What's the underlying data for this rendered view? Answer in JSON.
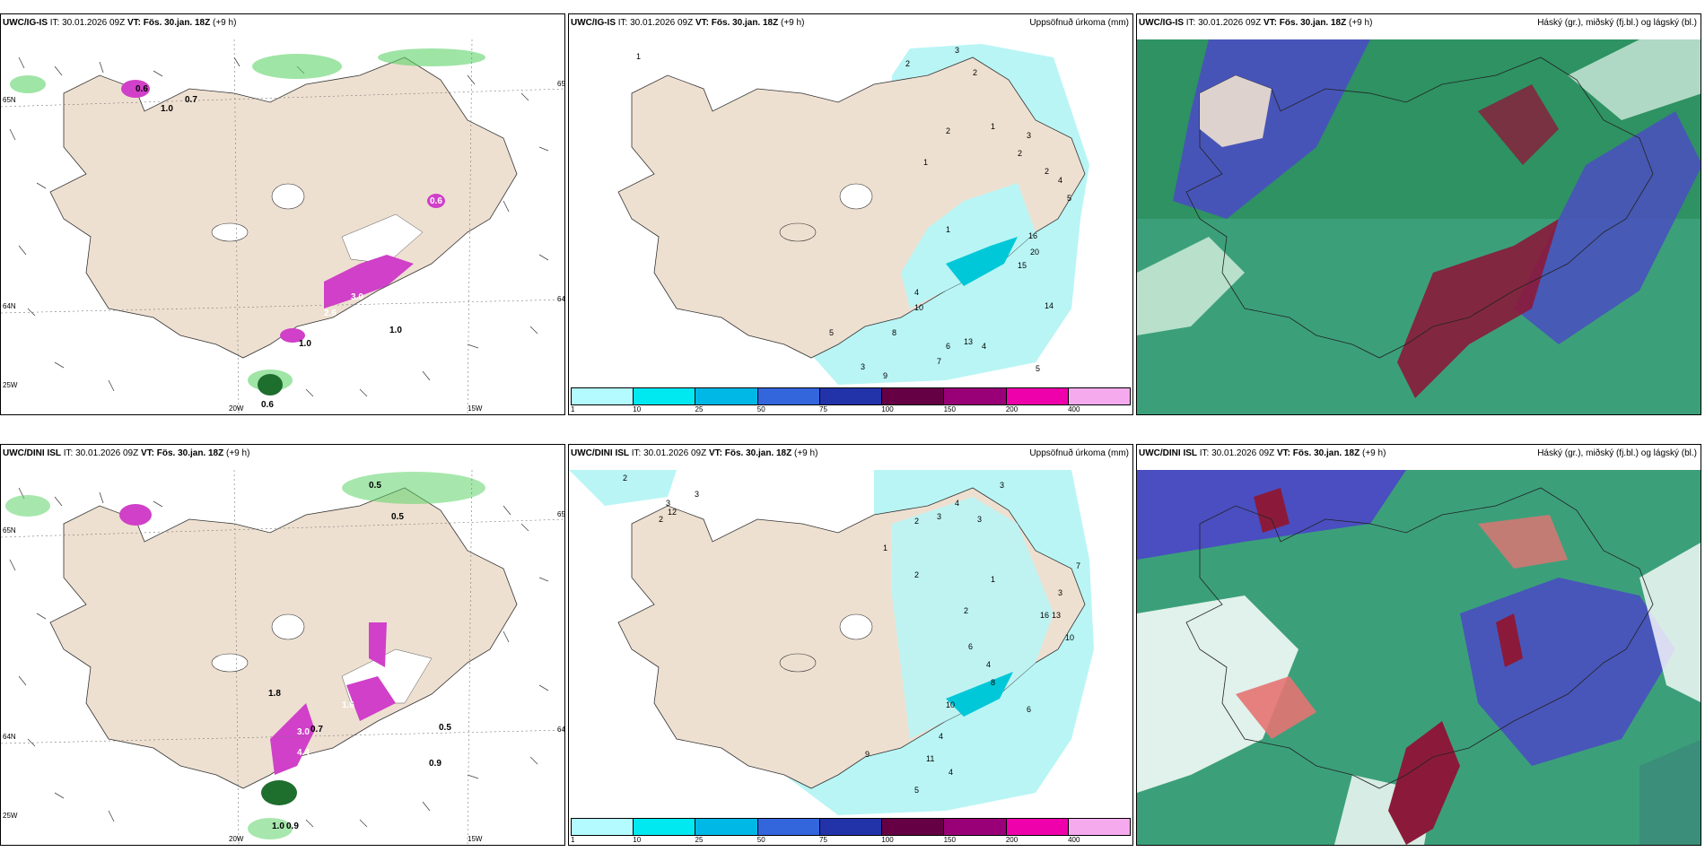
{
  "panels": {
    "p1": {
      "model": "UWC/IG-IS",
      "it": "IT: 30.01.2026 09Z",
      "vt_label": "VT:",
      "vt": "Fös. 30.jan. 18Z",
      "lead": "(+9 h)"
    },
    "p2": {
      "model": "UWC/IG-IS",
      "it": "IT: 30.01.2026 09Z",
      "vt_label": "VT:",
      "vt": "Fös. 30.jan. 18Z",
      "lead": "(+9 h)",
      "right": "Uppsöfnuð úrkoma (mm)"
    },
    "p3": {
      "model": "UWC/IG-IS",
      "it": "IT: 30.01.2026 09Z",
      "vt_label": "VT:",
      "vt": "Fös. 30.jan. 18Z",
      "lead": "(+9 h)",
      "right": "Háský (gr.), miðský (fj.bl.) og lágský (bl.)"
    },
    "p4": {
      "model": "UWC/DINI ISL",
      "it": "IT: 30.01.2026 09Z",
      "vt_label": "VT:",
      "vt": "Fös. 30.jan. 18Z",
      "lead": "(+9 h)"
    },
    "p5": {
      "model": "UWC/DINI ISL",
      "it": "IT: 30.01.2026 09Z",
      "vt_label": "VT:",
      "vt": "Fös. 30.jan. 18Z",
      "lead": "(+9 h)",
      "right": "Uppsöfnuð úrkoma (mm)"
    },
    "p6": {
      "model": "UWC/DINI ISL",
      "it": "IT: 30.01.2026 09Z",
      "vt_label": "VT:",
      "vt": "Fös. 30.jan. 18Z",
      "lead": "(+9 h)",
      "right": "Háský (gr.), miðský (fj.bl.) og lágský (bl.)"
    }
  },
  "axes": {
    "lat_top": "65N",
    "lat_bottom": "64N",
    "lat_edge": "25W",
    "lon_a": "20W",
    "lon_b": "15W",
    "lat_right_a": "65N",
    "lat_right_b": "64N"
  },
  "colorbar": {
    "labels": [
      "1",
      "10",
      "25",
      "50",
      "75",
      "100",
      "150",
      "200",
      "400"
    ],
    "colors": [
      "#b3fbff",
      "#00e8f0",
      "#00b8e6",
      "#3366dd",
      "#2233aa",
      "#660044",
      "#990077",
      "#ee00aa",
      "#f5aaee"
    ]
  },
  "colors": {
    "land": "#eee0d1",
    "sea": "#ffffff",
    "snow": "#ffffff",
    "precip_light": "#b9f5f5",
    "precip_dark": "#00c8d8",
    "rain_green": "#5fd36a",
    "snow_purple": "#d040c8",
    "cloud_high": "#2a8c5a",
    "cloud_mid": "#4a4ec0",
    "cloud_low": "#8b1a3a"
  },
  "labels": {
    "p1": [
      "0.7",
      "1.0",
      "0.6",
      "3.0",
      "1.1",
      "2.6",
      "1.0",
      "1.0",
      "0.6",
      "0.6"
    ],
    "p4": [
      "0.5",
      "0.5",
      "1.8",
      "3.0",
      "4.4",
      "1.6",
      "0.7",
      "0.5",
      "0.9",
      "1.0",
      "0.9"
    ],
    "p2": [
      "1",
      "2",
      "3",
      "2",
      "2",
      "1",
      "1",
      "2",
      "2",
      "3",
      "4",
      "5",
      "1",
      "16",
      "20",
      "15",
      "14",
      "4",
      "10",
      "8",
      "13",
      "5",
      "7",
      "6",
      "3",
      "9",
      "5",
      "4"
    ],
    "p5": [
      "2",
      "3",
      "3",
      "2",
      "12",
      "2",
      "3",
      "4",
      "3",
      "3",
      "1",
      "2",
      "1",
      "2",
      "3",
      "6",
      "4",
      "8",
      "10",
      "16",
      "10",
      "13",
      "6",
      "4",
      "7",
      "9",
      "11",
      "5",
      "4"
    ]
  }
}
